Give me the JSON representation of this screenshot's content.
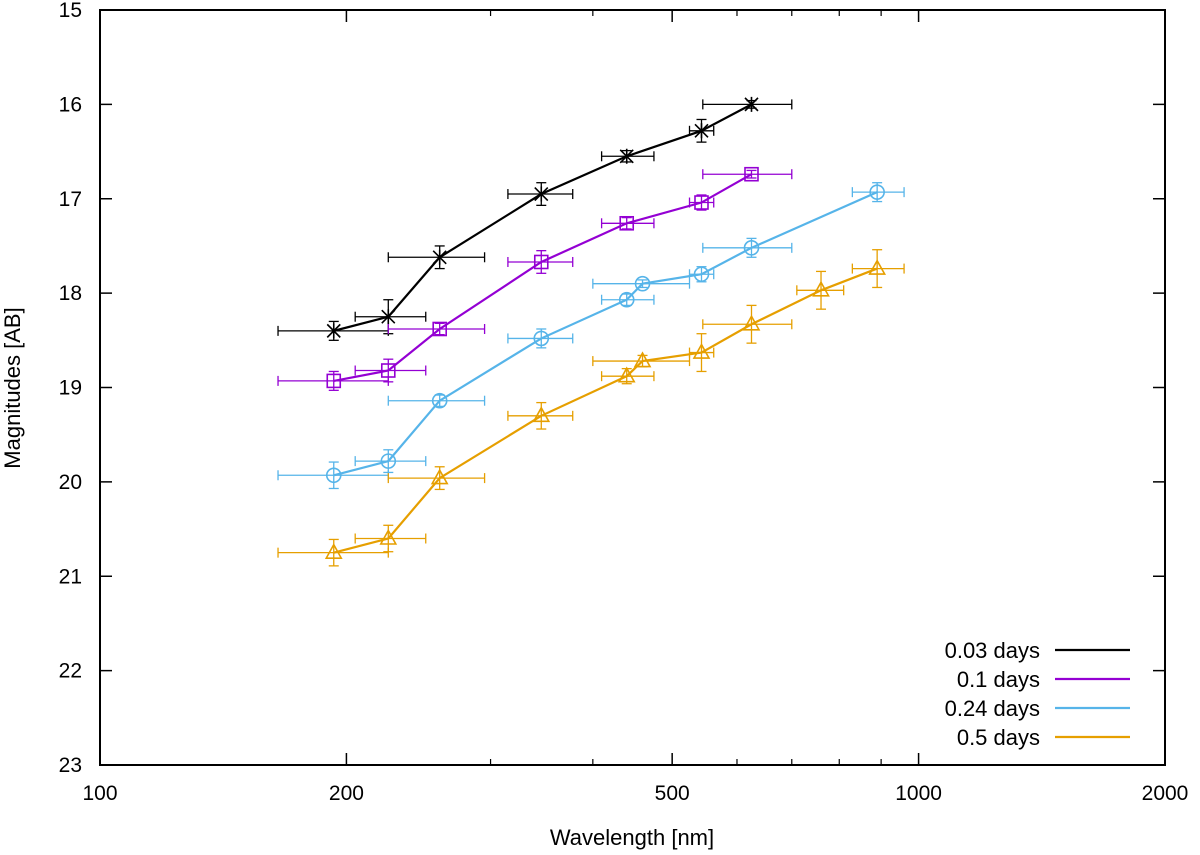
{
  "chart_data": {
    "type": "line",
    "title": "",
    "xlabel": "Wavelength [nm]",
    "ylabel": "Magnitudes [AB]",
    "xscale": "log",
    "xlim": [
      100,
      2000
    ],
    "ylim": [
      23,
      15
    ],
    "y_inverted": true,
    "grid": false,
    "legend_position": "bottom-right",
    "xticks": [
      100,
      200,
      500,
      1000,
      2000
    ],
    "xtick_labels": [
      "100",
      "200",
      "500",
      "1000",
      "2000"
    ],
    "xminor_ticks": [
      300,
      400,
      600,
      700,
      800,
      900
    ],
    "yticks": [
      15,
      16,
      17,
      18,
      19,
      20,
      21,
      22,
      23
    ],
    "ytick_labels": [
      "15",
      "16",
      "17",
      "18",
      "19",
      "20",
      "21",
      "22",
      "23"
    ],
    "series": [
      {
        "name": "0.03 days",
        "color": "#000000",
        "marker": "star",
        "points": [
          {
            "x": 193,
            "y": 18.4,
            "xerr": [
              165,
              225
            ],
            "yerr": 0.1
          },
          {
            "x": 225,
            "y": 18.25,
            "xerr": [
              205,
              250
            ],
            "yerr": 0.18
          },
          {
            "x": 260,
            "y": 17.62,
            "xerr": [
              225,
              295
            ],
            "yerr": 0.12
          },
          {
            "x": 346,
            "y": 16.95,
            "xerr": [
              315,
              378
            ],
            "yerr": 0.12
          },
          {
            "x": 440,
            "y": 16.55,
            "xerr": [
              410,
              475
            ],
            "yerr": 0.06
          },
          {
            "x": 543,
            "y": 16.28,
            "xerr": [
              525,
              562
            ],
            "yerr": 0.12
          },
          {
            "x": 625,
            "y": 16.0,
            "xerr": [
              545,
              700
            ],
            "yerr": 0.04
          }
        ]
      },
      {
        "name": "0.1 days",
        "color": "#9400D3",
        "marker": "square",
        "points": [
          {
            "x": 193,
            "y": 18.93,
            "xerr": [
              165,
              225
            ],
            "yerr": 0.1
          },
          {
            "x": 225,
            "y": 18.82,
            "xerr": [
              205,
              250
            ],
            "yerr": 0.12
          },
          {
            "x": 260,
            "y": 18.38,
            "xerr": [
              225,
              295
            ],
            "yerr": 0.06
          },
          {
            "x": 346,
            "y": 17.67,
            "xerr": [
              315,
              378
            ],
            "yerr": 0.12
          },
          {
            "x": 440,
            "y": 17.26,
            "xerr": [
              410,
              475
            ],
            "yerr": 0.06
          },
          {
            "x": 543,
            "y": 17.04,
            "xerr": [
              525,
              562
            ],
            "yerr": 0.08
          },
          {
            "x": 625,
            "y": 16.74,
            "xerr": [
              545,
              700
            ],
            "yerr": 0.04
          }
        ]
      },
      {
        "name": "0.24 days",
        "color": "#56B4E9",
        "marker": "circle",
        "points": [
          {
            "x": 193,
            "y": 19.93,
            "xerr": [
              165,
              225
            ],
            "yerr": 0.14
          },
          {
            "x": 225,
            "y": 19.78,
            "xerr": [
              205,
              250
            ],
            "yerr": 0.12
          },
          {
            "x": 260,
            "y": 19.14,
            "xerr": [
              225,
              295
            ],
            "yerr": 0.06
          },
          {
            "x": 346,
            "y": 18.48,
            "xerr": [
              315,
              378
            ],
            "yerr": 0.1
          },
          {
            "x": 440,
            "y": 18.07,
            "xerr": [
              410,
              475
            ],
            "yerr": 0.06
          },
          {
            "x": 460,
            "y": 17.9,
            "xerr": [
              400,
              525
            ],
            "yerr": 0.04
          },
          {
            "x": 543,
            "y": 17.8,
            "xerr": [
              525,
              562
            ],
            "yerr": 0.08
          },
          {
            "x": 625,
            "y": 17.52,
            "xerr": [
              545,
              700
            ],
            "yerr": 0.1
          },
          {
            "x": 890,
            "y": 16.93,
            "xerr": [
              830,
              960
            ],
            "yerr": 0.1
          }
        ]
      },
      {
        "name": "0.5 days",
        "color": "#E69F00",
        "marker": "triangle",
        "points": [
          {
            "x": 193,
            "y": 20.75,
            "xerr": [
              165,
              225
            ],
            "yerr": 0.14
          },
          {
            "x": 225,
            "y": 20.6,
            "xerr": [
              205,
              250
            ],
            "yerr": 0.14
          },
          {
            "x": 260,
            "y": 19.96,
            "xerr": [
              225,
              295
            ],
            "yerr": 0.12
          },
          {
            "x": 346,
            "y": 19.3,
            "xerr": [
              315,
              378
            ],
            "yerr": 0.14
          },
          {
            "x": 440,
            "y": 18.88,
            "xerr": [
              410,
              475
            ],
            "yerr": 0.08
          },
          {
            "x": 460,
            "y": 18.72,
            "xerr": [
              400,
              525
            ],
            "yerr": 0.06
          },
          {
            "x": 543,
            "y": 18.63,
            "xerr": [
              525,
              562
            ],
            "yerr": 0.2
          },
          {
            "x": 625,
            "y": 18.33,
            "xerr": [
              545,
              700
            ],
            "yerr": 0.2
          },
          {
            "x": 760,
            "y": 17.97,
            "xerr": [
              710,
              810
            ],
            "yerr": 0.2
          },
          {
            "x": 890,
            "y": 17.74,
            "xerr": [
              830,
              960
            ],
            "yerr": 0.2
          }
        ]
      }
    ]
  }
}
